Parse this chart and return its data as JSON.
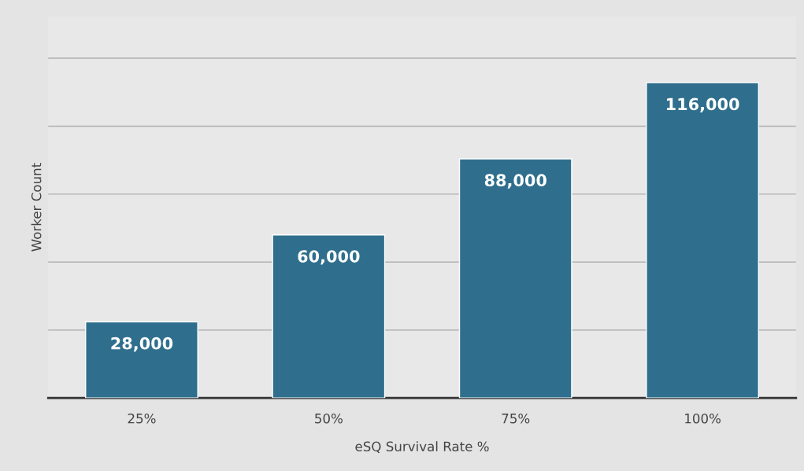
{
  "chart_data": {
    "type": "bar",
    "xlabel": "eSQ Survival Rate %",
    "ylabel": "Worker Count",
    "categories": [
      "25%",
      "50%",
      "75%",
      "100%"
    ],
    "values": [
      28000,
      60000,
      88000,
      116000
    ],
    "color": "#2f6f8d",
    "value_labels": [
      "28,000",
      "60,000",
      "88,000",
      "116,000"
    ],
    "grid": "y",
    "tick_labels": "x"
  }
}
